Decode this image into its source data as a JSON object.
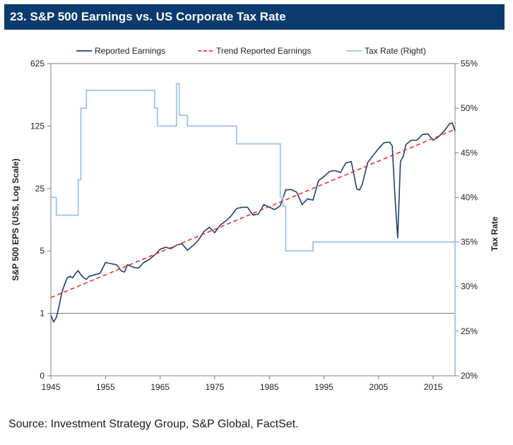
{
  "title": "23. S&P 500 Earnings vs. US Corporate Tax Rate",
  "source": "Source: Investment Strategy Group, S&P Global, FactSet.",
  "colors": {
    "title_bg": "#0b3a6e",
    "reported": "#1f3f73",
    "trend": "#e8302a",
    "tax": "#9ec4e6"
  },
  "chart_data": {
    "type": "line",
    "title": "23. S&P 500 Earnings vs. US Corporate Tax Rate",
    "xlabel": "",
    "ylabel": "S&P 500 EPS (US$, Log Scale)",
    "y2label": "Tax Rate",
    "xlim": [
      1945,
      2019
    ],
    "ylim_log": [
      0.2,
      625
    ],
    "y2lim": [
      20,
      55
    ],
    "x_ticks": [
      "1945",
      "1955",
      "1965",
      "1975",
      "1985",
      "1995",
      "2005",
      "2015"
    ],
    "x_tick_values": [
      1945,
      1955,
      1965,
      1975,
      1985,
      1995,
      2005,
      2015
    ],
    "y_ticks": [
      "0",
      "1",
      "5",
      "25",
      "125",
      "625"
    ],
    "y_tick_values": [
      0.2,
      1,
      5,
      25,
      125,
      625
    ],
    "y2_ticks": [
      "20%",
      "25%",
      "30%",
      "35%",
      "40%",
      "45%",
      "50%",
      "55%"
    ],
    "y2_tick_values": [
      20,
      25,
      30,
      35,
      40,
      45,
      50,
      55
    ],
    "reference_line": 1,
    "legend": [
      "Reported Earnings",
      "Trend Reported Earnings",
      "Tax Rate (Right)"
    ],
    "legend_position": "top",
    "series": [
      {
        "name": "Reported Earnings",
        "style": "solid",
        "axis": "left",
        "x": [
          1945,
          1945.5,
          1946,
          1946.5,
          1947,
          1947.5,
          1948,
          1948.5,
          1949,
          1949.5,
          1950,
          1950.5,
          1951,
          1951.5,
          1952,
          1953,
          1954,
          1955,
          1956,
          1957,
          1958,
          1958.5,
          1959,
          1960,
          1961,
          1962,
          1963,
          1964,
          1965,
          1966,
          1967,
          1968,
          1969,
          1970,
          1971,
          1972,
          1973,
          1974,
          1975,
          1976,
          1977,
          1978,
          1979,
          1980,
          1981,
          1982,
          1983,
          1984,
          1985,
          1986,
          1987,
          1988,
          1989,
          1990,
          1991,
          1992,
          1993,
          1994,
          1995,
          1996,
          1997,
          1998,
          1999,
          2000,
          2001,
          2001.5,
          2002,
          2003,
          2004,
          2005,
          2006,
          2007,
          2007.5,
          2008,
          2008.5,
          2009,
          2009.5,
          2010,
          2011,
          2012,
          2013,
          2014,
          2015,
          2016,
          2017,
          2018,
          2018.5,
          2019
        ],
        "y": [
          0.95,
          0.8,
          0.9,
          1.2,
          1.7,
          2.1,
          2.5,
          2.6,
          2.5,
          2.8,
          3.0,
          2.7,
          2.5,
          2.4,
          2.6,
          2.7,
          2.8,
          3.7,
          3.6,
          3.5,
          2.95,
          2.9,
          3.5,
          3.3,
          3.2,
          3.7,
          4.0,
          4.5,
          5.2,
          5.5,
          5.3,
          5.8,
          6.0,
          5.1,
          5.7,
          6.6,
          8.2,
          9.2,
          8.0,
          9.7,
          10.8,
          12.3,
          14.9,
          15.4,
          15.4,
          12.6,
          12.9,
          16.5,
          15.4,
          14.5,
          16.0,
          24.1,
          24.3,
          22.7,
          16.5,
          19.1,
          18.5,
          30.6,
          33.9,
          38.7,
          39.7,
          37.7,
          48.2,
          50.0,
          24.7,
          24.0,
          27.6,
          48.7,
          58.6,
          69.9,
          81.5,
          82.5,
          75.0,
          20.0,
          7.0,
          50.0,
          57.0,
          77.3,
          86.9,
          86.5,
          100.2,
          102.3,
          86.5,
          95.0,
          109.9,
          132.4,
          135.0,
          110.0
        ]
      },
      {
        "name": "Trend Reported Earnings",
        "style": "dashed",
        "axis": "left",
        "x": [
          1945,
          2019
        ],
        "y": [
          1.5,
          115
        ]
      },
      {
        "name": "Tax Rate (Right)",
        "style": "step",
        "axis": "right",
        "x": [
          1945,
          1946,
          1950,
          1950.5,
          1951,
          1951.5,
          1952,
          1964,
          1964.5,
          1965,
          1968,
          1968.5,
          1970,
          1970.5,
          1979,
          1987,
          1987.5,
          1988,
          1993,
          2018,
          2019
        ],
        "y": [
          40,
          38,
          42,
          50,
          50,
          52,
          52,
          50,
          48,
          48,
          52.75,
          49.2,
          48,
          48,
          46,
          40,
          39,
          34,
          35,
          35,
          21
        ]
      }
    ]
  }
}
